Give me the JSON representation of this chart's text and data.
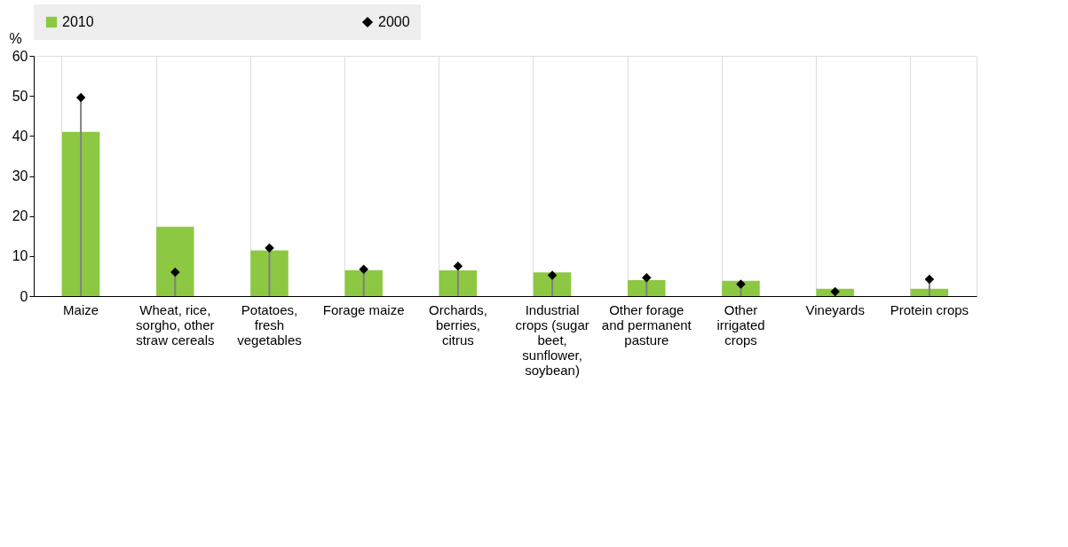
{
  "chart_data": {
    "type": "bar",
    "ylabel": "%",
    "categories": [
      "Maize",
      "Wheat, rice, sorgho, other straw cereals",
      "Potatoes, fresh vegetables",
      "Forage maize",
      "Orchards, berries, citrus",
      "Industrial crops (sugar beet, sunflower, soybean)",
      "Other forage and permanent pasture",
      "Other irrigated crops",
      "Vineyards",
      "Protein crops"
    ],
    "series": [
      {
        "name": "2010",
        "color": "#8cc841",
        "values": [
          41.0,
          17.3,
          11.4,
          6.5,
          6.4,
          5.9,
          4.0,
          3.8,
          1.8,
          1.8
        ]
      },
      {
        "name": "2000",
        "type": "lollipop",
        "color": "#000000",
        "marker": "diamond",
        "values": [
          49.6,
          6.0,
          12.0,
          6.7,
          7.5,
          5.2,
          4.6,
          3.0,
          1.1,
          4.2
        ]
      }
    ],
    "ylim": [
      0,
      60
    ],
    "yticks": [
      0,
      10,
      20,
      30,
      40,
      50,
      60
    ],
    "grid": "x",
    "legend": "top"
  }
}
